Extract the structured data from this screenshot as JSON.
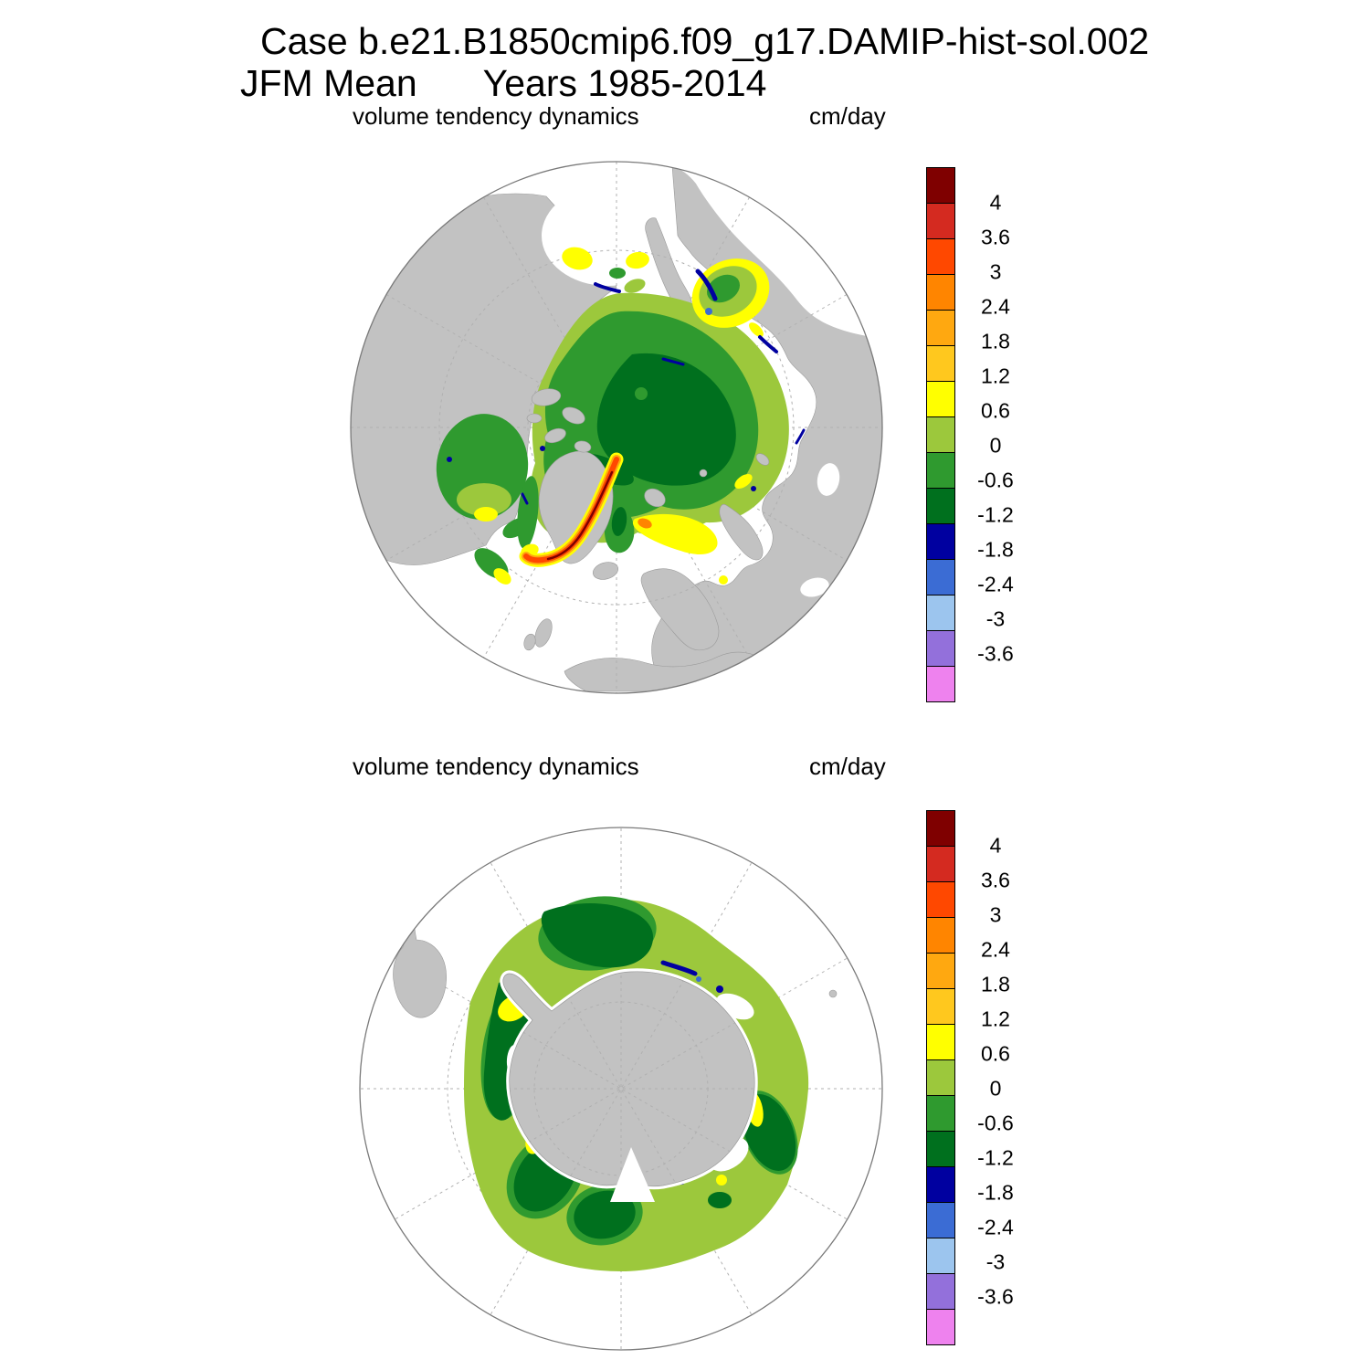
{
  "title": {
    "line1": "Case b.e21.B1850cmip6.f09_g17.DAMIP-hist-sol.002",
    "line2_left": "JFM Mean",
    "line2_right": "Years 1985-2014"
  },
  "panels": [
    {
      "label": "volume tendency dynamics",
      "units": "cm/day"
    },
    {
      "label": "volume tendency dynamics",
      "units": "cm/day"
    }
  ],
  "colorbar": {
    "tick_labels_top_to_bottom": [
      "4",
      "3.6",
      "3",
      "2.4",
      "1.8",
      "1.2",
      "0.6",
      "0",
      "-0.6",
      "-1.2",
      "-1.8",
      "-2.4",
      "-3",
      "-3.6"
    ],
    "colors_top_to_bottom": [
      "#7f0000",
      "#d42a20",
      "#ff4800",
      "#ff8500",
      "#ffa810",
      "#ffc81e",
      "#ffff00",
      "#9cc83c",
      "#2f9a2f",
      "#00701e",
      "#0000a0",
      "#3b6cd4",
      "#9cc5ee",
      "#9370db",
      "#ee82ee"
    ]
  },
  "map_colors": {
    "land": "#c2c2c2",
    "coast": "#9a9a9a",
    "grid": "#b0b0b0",
    "ocean": "#ffffff",
    "frame": "#7a7a7a"
  },
  "chart_data": {
    "type": "heatmap",
    "case": "b.e21.B1850cmip6.f09_g17.DAMIP-hist-sol.002",
    "season": "JFM Mean",
    "years": "1985-2014",
    "variable": "volume tendency dynamics",
    "units": "cm/day",
    "contour_levels": [
      -3.6,
      -3,
      -2.4,
      -1.8,
      -1.2,
      -0.6,
      0,
      0.6,
      1.2,
      1.8,
      2.4,
      3,
      3.6,
      4
    ],
    "colors_low_to_high": [
      "#ee82ee",
      "#9370db",
      "#9cc5ee",
      "#3b6cd4",
      "#0000a0",
      "#00701e",
      "#2f9a2f",
      "#9cc83c",
      "#ffff00",
      "#ffc81e",
      "#ffa810",
      "#ff8500",
      "#ff4800",
      "#d42a20",
      "#7f0000"
    ],
    "legend_position": "right of each panel",
    "panels": [
      {
        "region": "Arctic, north polar stereographic map",
        "notable_features": [
          "central Arctic pack mostly 0 to -1.2 cm/day (green to dark green)",
          "0 to 0.6 cm/day fringe along Beaufort, Chukchi and Siberian shelf seas",
          "positive 0.6-1.8 cm/day patches in Bering Sea, Sea of Okhotsk, Baffin Bay, Hudson Bay south and Barents Sea ice edge",
          "strong positive export band reaching >4 cm/day along the southeast Greenland coast",
          "narrow negative (-1.2 to -2.4 cm/day) marks along Okhotsk, Bering and coastal leads"
        ]
      },
      {
        "region": "Antarctic, south polar stereographic map",
        "notable_features": [
          "circumpolar sea-ice ring mostly 0 to 0.6 cm/day (yellow-green)",
          "patches of -0.6 to -1.2 cm/day in Weddell, coastal East Antarctica, Ross and Amundsen sectors",
          "isolated 0.6-1.2 cm/day patches near the ice edge and coast",
          "thin negative (-1.2 to -1.8 cm/day) marks along the coastline"
        ]
      }
    ]
  }
}
